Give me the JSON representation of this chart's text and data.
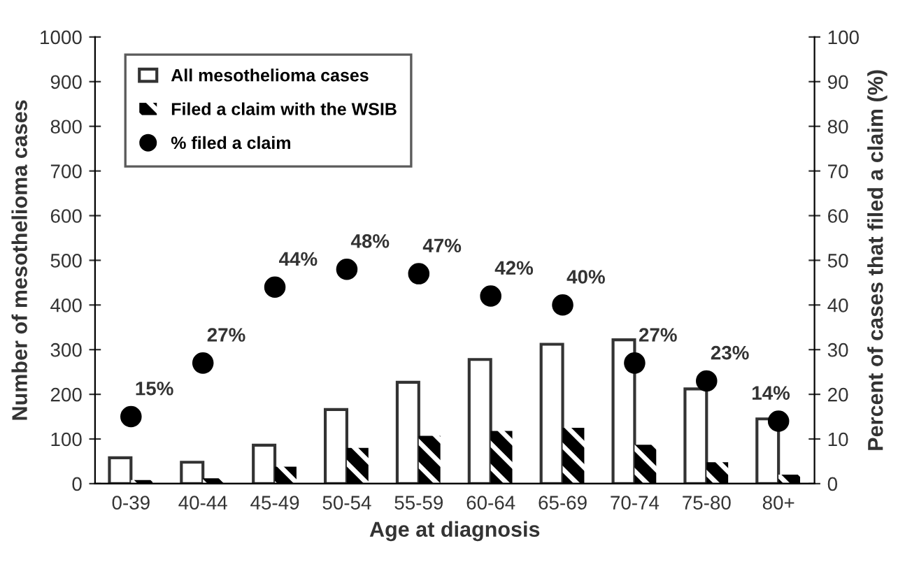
{
  "chart_data": {
    "type": "bar",
    "xlabel": "Age at diagnosis",
    "ylabel": "Number of mesothelioma cases",
    "y2label": "Percent of cases that filed a claim (%)",
    "categories": [
      "0-39",
      "40-44",
      "45-49",
      "50-54",
      "55-59",
      "60-64",
      "65-69",
      "70-74",
      "75-80",
      "80+"
    ],
    "series": [
      {
        "name": "All mesothelioma cases",
        "color": "#ffffff",
        "values": [
          58,
          48,
          86,
          166,
          227,
          278,
          312,
          322,
          212,
          145
        ]
      },
      {
        "name": "Filed a claim with the WSIB",
        "color": "#000000",
        "values": [
          8,
          12,
          38,
          80,
          107,
          118,
          125,
          87,
          48,
          20
        ]
      },
      {
        "name": "% filed a claim",
        "type": "scatter",
        "axis": "y2",
        "color": "#000000",
        "marker": "circle",
        "values": [
          15,
          27,
          44,
          48,
          47,
          42,
          40,
          27,
          23,
          14
        ],
        "value_labels": [
          "15%",
          "27%",
          "44%",
          "48%",
          "47%",
          "42%",
          "40%",
          "27%",
          "23%",
          "14%"
        ]
      }
    ],
    "ylim": [
      0,
      1000
    ],
    "yticks": [
      0,
      100,
      200,
      300,
      400,
      500,
      600,
      700,
      800,
      900,
      1000
    ],
    "y2lim": [
      0,
      100
    ],
    "y2ticks": [
      0,
      10,
      20,
      30,
      40,
      50,
      60,
      70,
      80,
      90,
      100
    ],
    "legend": "top left",
    "grid": false
  }
}
